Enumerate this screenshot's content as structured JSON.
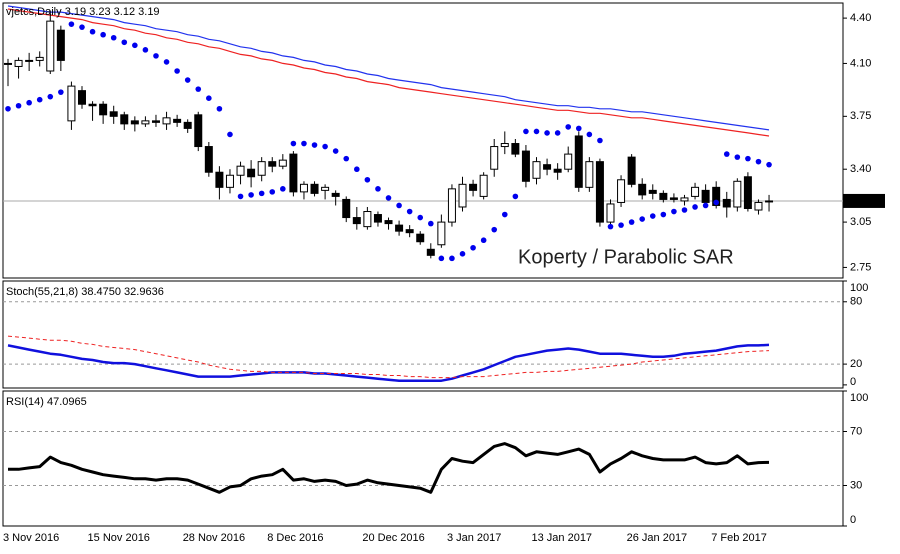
{
  "chart_data": [
    {
      "type": "candlestick",
      "title": "vjetcs,Daily",
      "annotation": "Koperty / Parabolic SAR",
      "categories": [
        "3 Nov 2016",
        null,
        null,
        null,
        null,
        null,
        null,
        null,
        "15 Nov 2016",
        null,
        null,
        null,
        null,
        null,
        null,
        null,
        null,
        "28 Nov 2016",
        null,
        null,
        null,
        null,
        null,
        null,
        null,
        "8 Dec 2016",
        null,
        null,
        null,
        null,
        null,
        null,
        null,
        null,
        "20 Dec 2016",
        null,
        null,
        null,
        null,
        null,
        null,
        null,
        "3 Jan 2017",
        null,
        null,
        null,
        null,
        null,
        null,
        null,
        "13 Jan 2017",
        null,
        null,
        null,
        null,
        null,
        null,
        null,
        null,
        "26 Jan 2017",
        null,
        null,
        null,
        null,
        null,
        null,
        null,
        "7 Feb 2017",
        null,
        null,
        null,
        null,
        null
      ],
      "ohlc": [
        [
          4.1,
          4.13,
          3.95,
          4.1
        ],
        [
          4.08,
          4.14,
          4.0,
          4.12
        ],
        [
          4.12,
          4.17,
          4.05,
          4.12
        ],
        [
          4.12,
          4.18,
          4.08,
          4.14
        ],
        [
          4.05,
          4.45,
          4.03,
          4.38
        ],
        [
          4.32,
          4.35,
          4.05,
          4.12
        ],
        [
          3.72,
          3.98,
          3.66,
          3.95
        ],
        [
          3.92,
          3.95,
          3.8,
          3.83
        ],
        [
          3.83,
          3.85,
          3.72,
          3.82
        ],
        [
          3.83,
          3.85,
          3.7,
          3.76
        ],
        [
          3.78,
          3.82,
          3.7,
          3.75
        ],
        [
          3.76,
          3.78,
          3.66,
          3.7
        ],
        [
          3.72,
          3.75,
          3.65,
          3.7
        ],
        [
          3.7,
          3.75,
          3.68,
          3.72
        ],
        [
          3.72,
          3.76,
          3.68,
          3.71
        ],
        [
          3.7,
          3.78,
          3.66,
          3.74
        ],
        [
          3.73,
          3.76,
          3.68,
          3.71
        ],
        [
          3.71,
          3.73,
          3.64,
          3.67
        ],
        [
          3.76,
          3.78,
          3.52,
          3.55
        ],
        [
          3.55,
          3.58,
          3.35,
          3.38
        ],
        [
          3.38,
          3.42,
          3.2,
          3.28
        ],
        [
          3.28,
          3.4,
          3.24,
          3.36
        ],
        [
          3.36,
          3.45,
          3.3,
          3.42
        ],
        [
          3.4,
          3.46,
          3.28,
          3.35
        ],
        [
          3.36,
          3.48,
          3.32,
          3.45
        ],
        [
          3.45,
          3.48,
          3.38,
          3.42
        ],
        [
          3.42,
          3.5,
          3.4,
          3.46
        ],
        [
          3.5,
          3.52,
          3.22,
          3.25
        ],
        [
          3.25,
          3.32,
          3.2,
          3.3
        ],
        [
          3.3,
          3.32,
          3.22,
          3.24
        ],
        [
          3.26,
          3.3,
          3.2,
          3.28
        ],
        [
          3.24,
          3.26,
          3.16,
          3.22
        ],
        [
          3.2,
          3.22,
          3.05,
          3.08
        ],
        [
          3.08,
          3.15,
          3.0,
          3.04
        ],
        [
          3.02,
          3.15,
          3.0,
          3.12
        ],
        [
          3.1,
          3.12,
          3.02,
          3.05
        ],
        [
          3.06,
          3.08,
          3.0,
          3.04
        ],
        [
          3.03,
          3.06,
          2.96,
          2.99
        ],
        [
          3.0,
          3.03,
          2.95,
          2.98
        ],
        [
          2.97,
          2.99,
          2.9,
          2.92
        ],
        [
          2.87,
          2.91,
          2.81,
          2.83
        ],
        [
          2.9,
          3.1,
          2.88,
          3.05
        ],
        [
          3.05,
          3.3,
          3.02,
          3.27
        ],
        [
          3.15,
          3.35,
          3.12,
          3.3
        ],
        [
          3.3,
          3.33,
          3.22,
          3.26
        ],
        [
          3.22,
          3.38,
          3.2,
          3.36
        ],
        [
          3.4,
          3.6,
          3.35,
          3.55
        ],
        [
          3.55,
          3.65,
          3.5,
          3.57
        ],
        [
          3.57,
          3.6,
          3.48,
          3.5
        ],
        [
          3.52,
          3.56,
          3.28,
          3.32
        ],
        [
          3.34,
          3.48,
          3.3,
          3.45
        ],
        [
          3.43,
          3.47,
          3.36,
          3.4
        ],
        [
          3.4,
          3.44,
          3.33,
          3.38
        ],
        [
          3.4,
          3.55,
          3.38,
          3.5
        ],
        [
          3.62,
          3.65,
          3.25,
          3.28
        ],
        [
          3.28,
          3.48,
          3.25,
          3.45
        ],
        [
          3.45,
          3.47,
          3.02,
          3.05
        ],
        [
          3.05,
          3.2,
          3.03,
          3.17
        ],
        [
          3.18,
          3.36,
          3.15,
          3.33
        ],
        [
          3.48,
          3.5,
          3.28,
          3.3
        ],
        [
          3.3,
          3.34,
          3.2,
          3.23
        ],
        [
          3.26,
          3.3,
          3.2,
          3.24
        ],
        [
          3.24,
          3.26,
          3.18,
          3.2
        ],
        [
          3.21,
          3.24,
          3.18,
          3.2
        ],
        [
          3.19,
          3.23,
          3.16,
          3.21
        ],
        [
          3.22,
          3.31,
          3.2,
          3.28
        ],
        [
          3.26,
          3.3,
          3.16,
          3.18
        ],
        [
          3.28,
          3.32,
          3.14,
          3.16
        ],
        [
          3.2,
          3.25,
          3.08,
          3.15
        ],
        [
          3.15,
          3.34,
          3.12,
          3.32
        ],
        [
          3.35,
          3.38,
          3.12,
          3.14
        ],
        [
          3.13,
          3.2,
          3.1,
          3.18
        ],
        [
          3.19,
          3.23,
          3.12,
          3.19
        ]
      ],
      "overlays": [
        {
          "type": "line",
          "color": "#2233ee",
          "values": [
            4.48,
            4.47,
            4.46,
            4.45,
            4.44,
            4.44,
            4.43,
            4.42,
            4.41,
            4.4,
            4.39,
            4.37,
            4.36,
            4.35,
            4.33,
            4.32,
            4.31,
            4.29,
            4.28,
            4.26,
            4.25,
            4.23,
            4.21,
            4.2,
            4.18,
            4.17,
            4.15,
            4.14,
            4.12,
            4.11,
            4.09,
            4.08,
            4.06,
            4.05,
            4.03,
            4.02,
            4.0,
            3.99,
            3.98,
            3.97,
            3.96,
            3.94,
            3.93,
            3.92,
            3.91,
            3.9,
            3.89,
            3.88,
            3.86,
            3.85,
            3.84,
            3.83,
            3.82,
            3.82,
            3.81,
            3.81,
            3.8,
            3.8,
            3.79,
            3.78,
            3.78,
            3.77,
            3.76,
            3.75,
            3.74,
            3.73,
            3.72,
            3.71,
            3.7,
            3.69,
            3.68,
            3.67,
            3.66
          ]
        },
        {
          "type": "line",
          "color": "#ee2222",
          "values": [
            4.46,
            4.45,
            4.44,
            4.43,
            4.42,
            4.41,
            4.4,
            4.39,
            4.37,
            4.36,
            4.35,
            4.33,
            4.32,
            4.3,
            4.29,
            4.27,
            4.26,
            4.24,
            4.23,
            4.21,
            4.2,
            4.18,
            4.16,
            4.15,
            4.13,
            4.12,
            4.1,
            4.09,
            4.07,
            4.06,
            4.04,
            4.03,
            4.01,
            4.0,
            3.98,
            3.97,
            3.96,
            3.94,
            3.93,
            3.92,
            3.91,
            3.9,
            3.89,
            3.88,
            3.87,
            3.86,
            3.85,
            3.84,
            3.83,
            3.82,
            3.81,
            3.8,
            3.79,
            3.79,
            3.78,
            3.77,
            3.77,
            3.76,
            3.75,
            3.74,
            3.74,
            3.73,
            3.72,
            3.71,
            3.7,
            3.69,
            3.68,
            3.67,
            3.66,
            3.65,
            3.64,
            3.63,
            3.62
          ]
        },
        {
          "type": "dots",
          "color": "#0000ee",
          "values": [
            3.8,
            3.82,
            3.84,
            3.86,
            3.88,
            3.91,
            4.36,
            4.34,
            4.31,
            4.29,
            4.27,
            4.24,
            4.22,
            4.19,
            4.15,
            4.11,
            4.05,
            3.99,
            3.93,
            3.87,
            3.8,
            3.63,
            3.22,
            3.23,
            3.24,
            3.25,
            3.27,
            3.57,
            3.57,
            3.56,
            3.55,
            3.52,
            3.47,
            3.4,
            3.33,
            3.27,
            3.21,
            3.16,
            3.12,
            3.08,
            3.04,
            2.81,
            2.81,
            2.84,
            2.88,
            2.93,
            3.0,
            3.1,
            3.22,
            3.65,
            3.65,
            3.64,
            3.64,
            3.68,
            3.67,
            3.63,
            3.59,
            3.02,
            3.03,
            3.05,
            3.07,
            3.09,
            3.1,
            3.12,
            3.13,
            3.15,
            3.16,
            3.18,
            3.5,
            3.48,
            3.47,
            3.45,
            3.43
          ]
        }
      ],
      "ylim": [
        2.68,
        4.5
      ],
      "yticks": [
        {
          "value": 4.4,
          "label": "4.40"
        },
        {
          "value": 4.1,
          "label": "4.10"
        },
        3.75,
        {
          "value": 3.4,
          "label": "3.40"
        },
        3.05,
        2.75
      ]
    },
    {
      "type": "line",
      "title": "Stoch(55,21,8)",
      "series": [
        {
          "color": "#1010dd",
          "width": 2.5,
          "value_label": "38.4750",
          "values": [
            38,
            36,
            34,
            32,
            30,
            29,
            27,
            25,
            24,
            22,
            21,
            21,
            20,
            18,
            16,
            14,
            12,
            10,
            8,
            8,
            8,
            8,
            9,
            10,
            11,
            12,
            12,
            12,
            12,
            11,
            11,
            10,
            9,
            8,
            7,
            6,
            5,
            4,
            4,
            4,
            4,
            4,
            6,
            9,
            12,
            15,
            19,
            23,
            27,
            29,
            31,
            33,
            34,
            35,
            34,
            32,
            30,
            30,
            30,
            29,
            28,
            27,
            27,
            28,
            30,
            31,
            32,
            33,
            35,
            37,
            38,
            38,
            38.475
          ]
        },
        {
          "color": "#ee2222",
          "width": 1,
          "dashed": true,
          "values": [
            47,
            46,
            45,
            44,
            43,
            43,
            42,
            40,
            39,
            37,
            36,
            35,
            34,
            32,
            30,
            28,
            26,
            24,
            22,
            19,
            17,
            15,
            14,
            13,
            13,
            12,
            12,
            12,
            12,
            11,
            11,
            11,
            11,
            11,
            10,
            10,
            9,
            9,
            8,
            8,
            7,
            7,
            7,
            8,
            8,
            8,
            9,
            10,
            11,
            12,
            12,
            13,
            13,
            14,
            15,
            16,
            17,
            18,
            19,
            20,
            22,
            23,
            24,
            25,
            26,
            27,
            28,
            29,
            30,
            31,
            32,
            32.5,
            32.9636
          ]
        }
      ],
      "ylim": [
        -3,
        100
      ],
      "yticks": [
        100,
        80,
        20,
        0
      ],
      "levels": [
        80,
        20
      ]
    },
    {
      "type": "line",
      "title": "RSI(14)",
      "series": [
        {
          "color": "#000000",
          "width": 3,
          "values": [
            42,
            42,
            43,
            44,
            51,
            47,
            45,
            42,
            40,
            38,
            37,
            36,
            35,
            35,
            34,
            35,
            35,
            34,
            31,
            28,
            25,
            29,
            30,
            35,
            37,
            38,
            42,
            34,
            35,
            33,
            34,
            33,
            30,
            31,
            34,
            32,
            31,
            30,
            29,
            28,
            25,
            42,
            50,
            48,
            47,
            53,
            59,
            61,
            58,
            52,
            55,
            54,
            53,
            55,
            57,
            53,
            40,
            46,
            50,
            55,
            52,
            50,
            49,
            49,
            49,
            51,
            47,
            46,
            47,
            52,
            46,
            47,
            47.0965
          ]
        }
      ],
      "ylim": [
        0,
        100
      ],
      "yticks": [
        100,
        70,
        30,
        0
      ],
      "levels": [
        70,
        30
      ]
    }
  ]
}
